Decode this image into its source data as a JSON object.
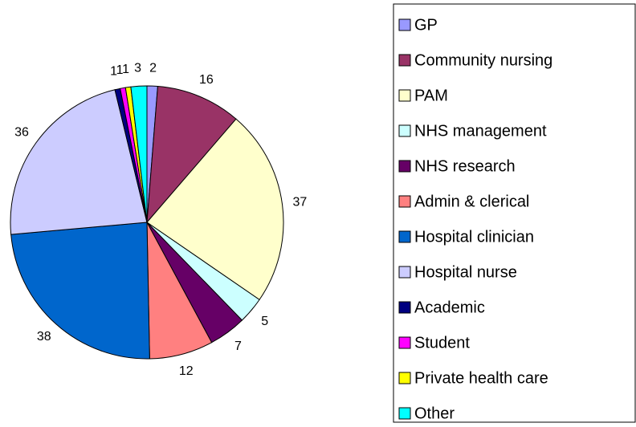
{
  "chart_data": {
    "type": "pie",
    "categories": [
      "GP",
      "Community nursing",
      "PAM",
      "NHS management",
      "NHS research",
      "Admin & clerical",
      "Hospital clinician",
      "Hospital nurse",
      "Academic",
      "Student",
      "Private health care",
      "Other"
    ],
    "values": [
      2,
      16,
      37,
      5,
      7,
      12,
      38,
      36,
      1,
      1,
      1,
      3
    ],
    "colors": [
      "#9999ff",
      "#993366",
      "#ffffcc",
      "#ccffff",
      "#660066",
      "#ff8080",
      "#0066cc",
      "#ccccff",
      "#000080",
      "#ff00ff",
      "#ffff00",
      "#00ffff"
    ],
    "legend": "right"
  }
}
